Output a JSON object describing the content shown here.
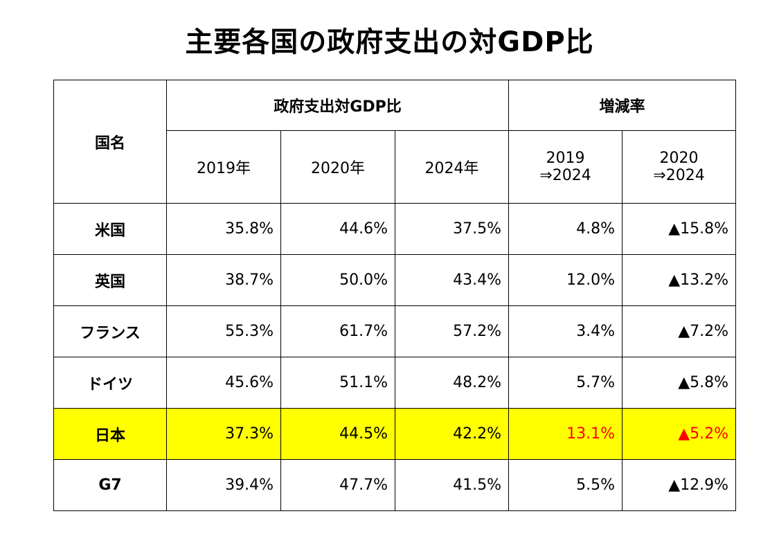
{
  "header": {
    "title": "主要各国の政府支出の対GDP比"
  },
  "table": {
    "corner": "国名",
    "group_headers": [
      "政府支出対GDP比",
      "増減率"
    ],
    "col_headers": [
      [
        "2019年"
      ],
      [
        "2020年"
      ],
      [
        "2024年"
      ],
      [
        "2019",
        "⇒2024"
      ],
      [
        "2020",
        "⇒2024"
      ]
    ],
    "rows": [
      [
        "米国",
        "35.8%",
        "44.6%",
        "37.5%",
        "4.8%",
        "▲15.8%"
      ],
      [
        "英国",
        "38.7%",
        "50.0%",
        "43.4%",
        "12.0%",
        "▲13.2%"
      ],
      [
        "フランス",
        "55.3%",
        "61.7%",
        "57.2%",
        "3.4%",
        "▲7.2%"
      ],
      [
        "ドイツ",
        "45.6%",
        "51.1%",
        "48.2%",
        "5.7%",
        "▲5.8%"
      ],
      [
        "日本",
        "37.3%",
        "44.5%",
        "42.2%",
        "13.1%",
        "▲5.2%"
      ],
      [
        "G7",
        "39.4%",
        "47.7%",
        "41.5%",
        "5.5%",
        "▲12.9%"
      ]
    ]
  }
}
